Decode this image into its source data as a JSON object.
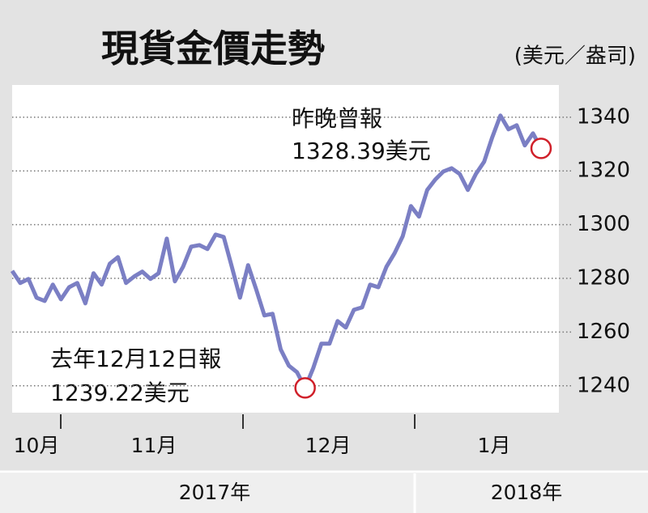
{
  "chart_data": {
    "type": "line",
    "title": "現貨金價走勢",
    "unit": "(美元／盎司)",
    "color": "#7b7fc4",
    "values": [
      1282.8,
      1278.3,
      1279.8,
      1272.8,
      1271.6,
      1277.7,
      1272.2,
      1276.7,
      1278.3,
      1270.7,
      1281.9,
      1277.7,
      1285.5,
      1287.9,
      1278.3,
      1280.7,
      1282.5,
      1279.8,
      1281.9,
      1294.8,
      1278.9,
      1284.3,
      1291.8,
      1292.4,
      1290.9,
      1296.3,
      1295.4,
      1284.3,
      1272.8,
      1284.9,
      1275.8,
      1266.2,
      1266.8,
      1253.6,
      1247.5,
      1245.1,
      1239.22,
      1246.6,
      1255.7,
      1255.7,
      1264.1,
      1261.7,
      1268.3,
      1269.2,
      1277.7,
      1276.7,
      1284.3,
      1289.4,
      1295.7,
      1306.9,
      1303.0,
      1312.9,
      1316.8,
      1319.8,
      1321.0,
      1318.9,
      1312.9,
      1318.9,
      1323.4,
      1332.5,
      1340.6,
      1335.5,
      1337.0,
      1329.5,
      1334.0,
      1328.39
    ],
    "ylim": [
      1230,
      1352
    ],
    "yticks": [
      1240,
      1260,
      1280,
      1300,
      1320,
      1340
    ],
    "grid": true,
    "month_labels": [
      "10月",
      "11月",
      "12月",
      "1月"
    ],
    "year_labels": [
      "2017年",
      "2018年"
    ],
    "annotations": [
      {
        "lines": [
          "昨晚曾報",
          "1328.39美元"
        ],
        "marker_color": "#d0202a"
      },
      {
        "lines": [
          "去年12月12日報",
          "1239.22美元"
        ],
        "marker_color": "#d0202a"
      }
    ]
  }
}
